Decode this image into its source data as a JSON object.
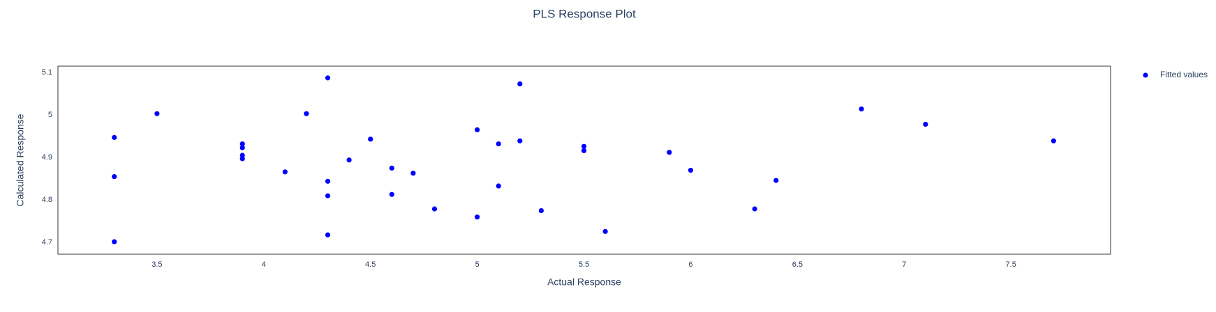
{
  "chart_data": {
    "type": "scatter",
    "title": "PLS Response Plot",
    "x_label": "Actual Response",
    "y_label": "Calculated Response",
    "series": [
      {
        "name": "Fitted values",
        "color": "#0000ff",
        "x": [
          3.3,
          3.3,
          3.3,
          3.5,
          3.9,
          3.9,
          3.9,
          3.9,
          4.1,
          4.2,
          4.3,
          4.3,
          4.3,
          4.3,
          4.4,
          4.5,
          4.6,
          4.6,
          4.7,
          4.8,
          5.0,
          5.0,
          5.1,
          5.1,
          5.2,
          5.2,
          5.3,
          5.5,
          5.5,
          5.6,
          5.9,
          6.0,
          6.3,
          6.4,
          6.8,
          7.1,
          7.7
        ],
        "values": [
          4.947,
          4.855,
          4.702,
          5.003,
          4.932,
          4.923,
          4.905,
          4.897,
          4.866,
          5.003,
          5.087,
          4.844,
          4.81,
          4.718,
          4.894,
          4.943,
          4.875,
          4.813,
          4.863,
          4.779,
          4.965,
          4.76,
          4.932,
          4.833,
          5.073,
          4.939,
          4.775,
          4.926,
          4.916,
          4.726,
          4.912,
          4.87,
          4.779,
          4.846,
          5.014,
          4.978,
          4.939
        ]
      }
    ],
    "xlim": [
      3.036,
      7.967
    ],
    "xticks": [
      3.5,
      4,
      4.5,
      5,
      5.5,
      6,
      6.5,
      7,
      7.5
    ],
    "ylim": [
      4.6726,
      5.1146
    ],
    "yticks": [
      4.7,
      4.8,
      4.9,
      5,
      5.1
    ],
    "grid": false,
    "legend": "right"
  }
}
